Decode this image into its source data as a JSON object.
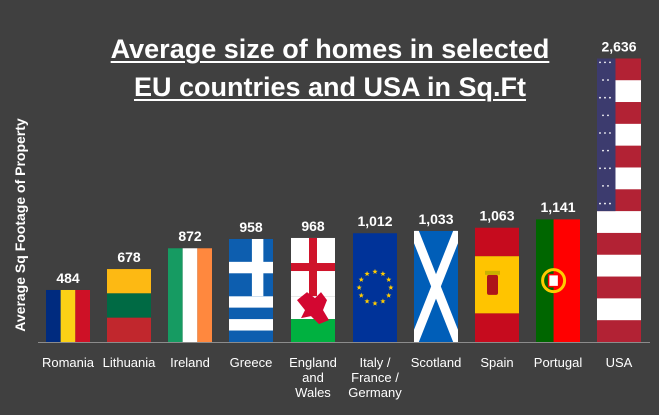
{
  "chart_data": {
    "type": "bar",
    "title_lines": [
      "Average size of homes in selected",
      "EU countries and USA in Sq.Ft"
    ],
    "ylabel": "Average Sq Footage of Property",
    "xlabel": "",
    "ylim": [
      0,
      2900
    ],
    "grid": false,
    "categories": [
      [
        "Romania"
      ],
      [
        "Lithuania"
      ],
      [
        "Ireland"
      ],
      [
        "Greece"
      ],
      [
        "England",
        "and",
        "Wales"
      ],
      [
        "Italy /",
        "France /",
        "Germany"
      ],
      [
        "Scotland"
      ],
      [
        "Spain"
      ],
      [
        "Portugal"
      ],
      [
        "USA"
      ]
    ],
    "values": [
      484,
      678,
      872,
      958,
      968,
      1012,
      1033,
      1063,
      1141,
      2636
    ],
    "value_labels": [
      "484",
      "678",
      "872",
      "958",
      "968",
      "1,012",
      "1,033",
      "1,063",
      "1,141",
      "2,636"
    ],
    "flag_icons": [
      "romania-flag",
      "lithuania-flag",
      "ireland-flag",
      "greece-flag",
      "wales-england-flag",
      "eu-flag",
      "scotland-flag",
      "spain-flag",
      "portugal-flag",
      "usa-flag"
    ]
  }
}
